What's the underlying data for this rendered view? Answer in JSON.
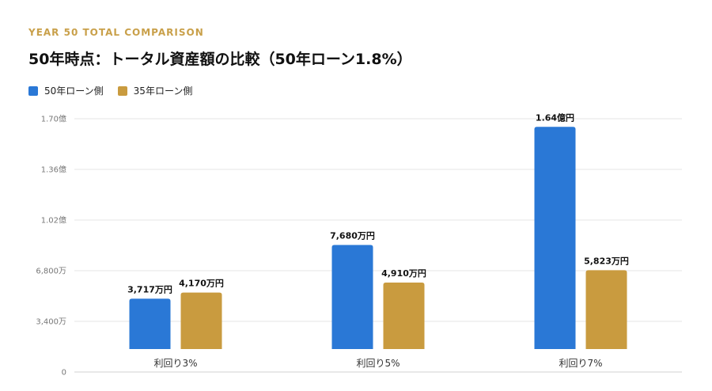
{
  "header": {
    "eyebrow": "YEAR 50 TOTAL COMPARISON",
    "title": "50年時点：トータル資産額の比較（50年ローン1.8%）"
  },
  "colors": {
    "series_1": "#2a78d6",
    "series_2": "#c99b3f",
    "eyebrow": "#c9a04a",
    "grid": "#e6e6e6"
  },
  "chart_data": {
    "type": "bar",
    "categories": [
      "利回り3%",
      "利回り5%",
      "利回り7%"
    ],
    "series": [
      {
        "name": "50年ローン側",
        "values": [
          3717,
          7680,
          16400
        ],
        "labels": [
          "3,717万円",
          "7,680万円",
          "1.64億円"
        ]
      },
      {
        "name": "35年ローン側",
        "values": [
          4170,
          4910,
          5823
        ],
        "labels": [
          "4,170万円",
          "4,910万円",
          "5,823万円"
        ]
      }
    ],
    "unit": "万円",
    "ylim": [
      0,
      17000
    ],
    "yticks": [
      {
        "value": 0,
        "label": "0"
      },
      {
        "value": 3400,
        "label": "3,400万"
      },
      {
        "value": 6800,
        "label": "6,800万"
      },
      {
        "value": 10200,
        "label": "1.02億"
      },
      {
        "value": 13600,
        "label": "1.36億"
      },
      {
        "value": 17000,
        "label": "1.70億"
      }
    ],
    "grid": true,
    "legend_position": "top-left"
  }
}
